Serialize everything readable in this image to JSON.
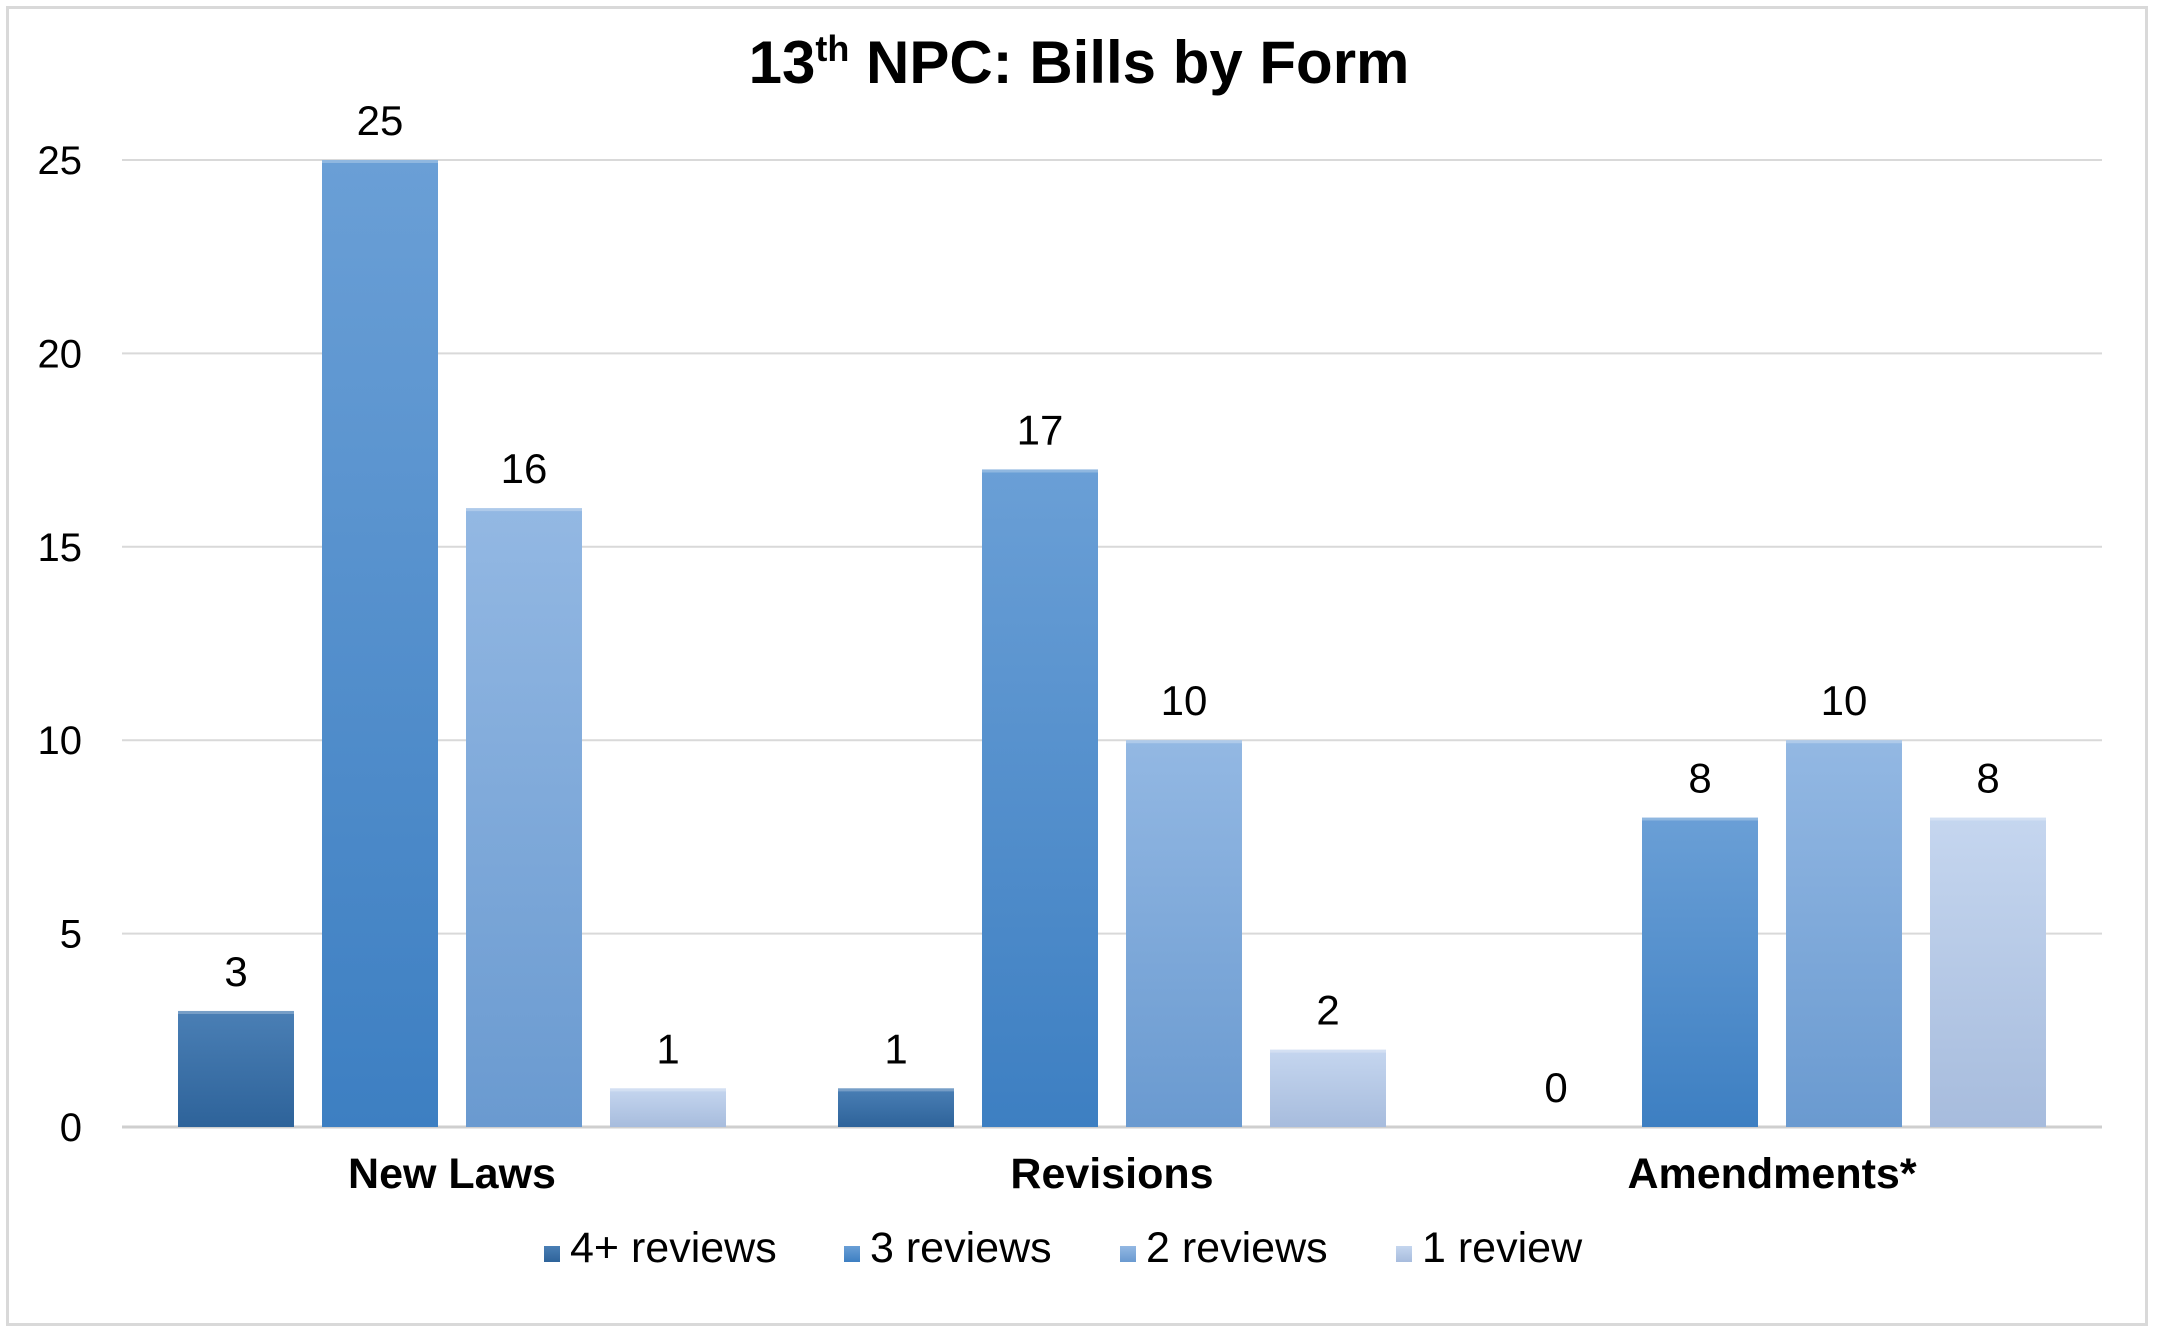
{
  "chart_data": {
    "type": "bar",
    "title_main": "13",
    "title_sup": "th",
    "title_rest": " NPC: Bills by Form",
    "categories": [
      "New Laws",
      "Revisions",
      "Amendments*"
    ],
    "series": [
      {
        "name": "4+ reviews",
        "values": [
          3,
          1,
          0
        ],
        "color_top": "#4a7fb5",
        "color_bottom": "#2e639a"
      },
      {
        "name": "3 reviews",
        "values": [
          25,
          17,
          8
        ],
        "color_top": "#6a9fd6",
        "color_bottom": "#3d7fc2"
      },
      {
        "name": "2 reviews",
        "values": [
          16,
          10,
          10
        ],
        "color_top": "#93b8e3",
        "color_bottom": "#6a9ad0"
      },
      {
        "name": "1 review",
        "values": [
          1,
          2,
          8
        ],
        "color_top": "#c5d6ef",
        "color_bottom": "#a7bcdd"
      }
    ],
    "ylim": [
      0,
      25
    ],
    "yticks": [
      0,
      5,
      10,
      15,
      20,
      25
    ],
    "grid": true,
    "legend_position": "bottom"
  }
}
